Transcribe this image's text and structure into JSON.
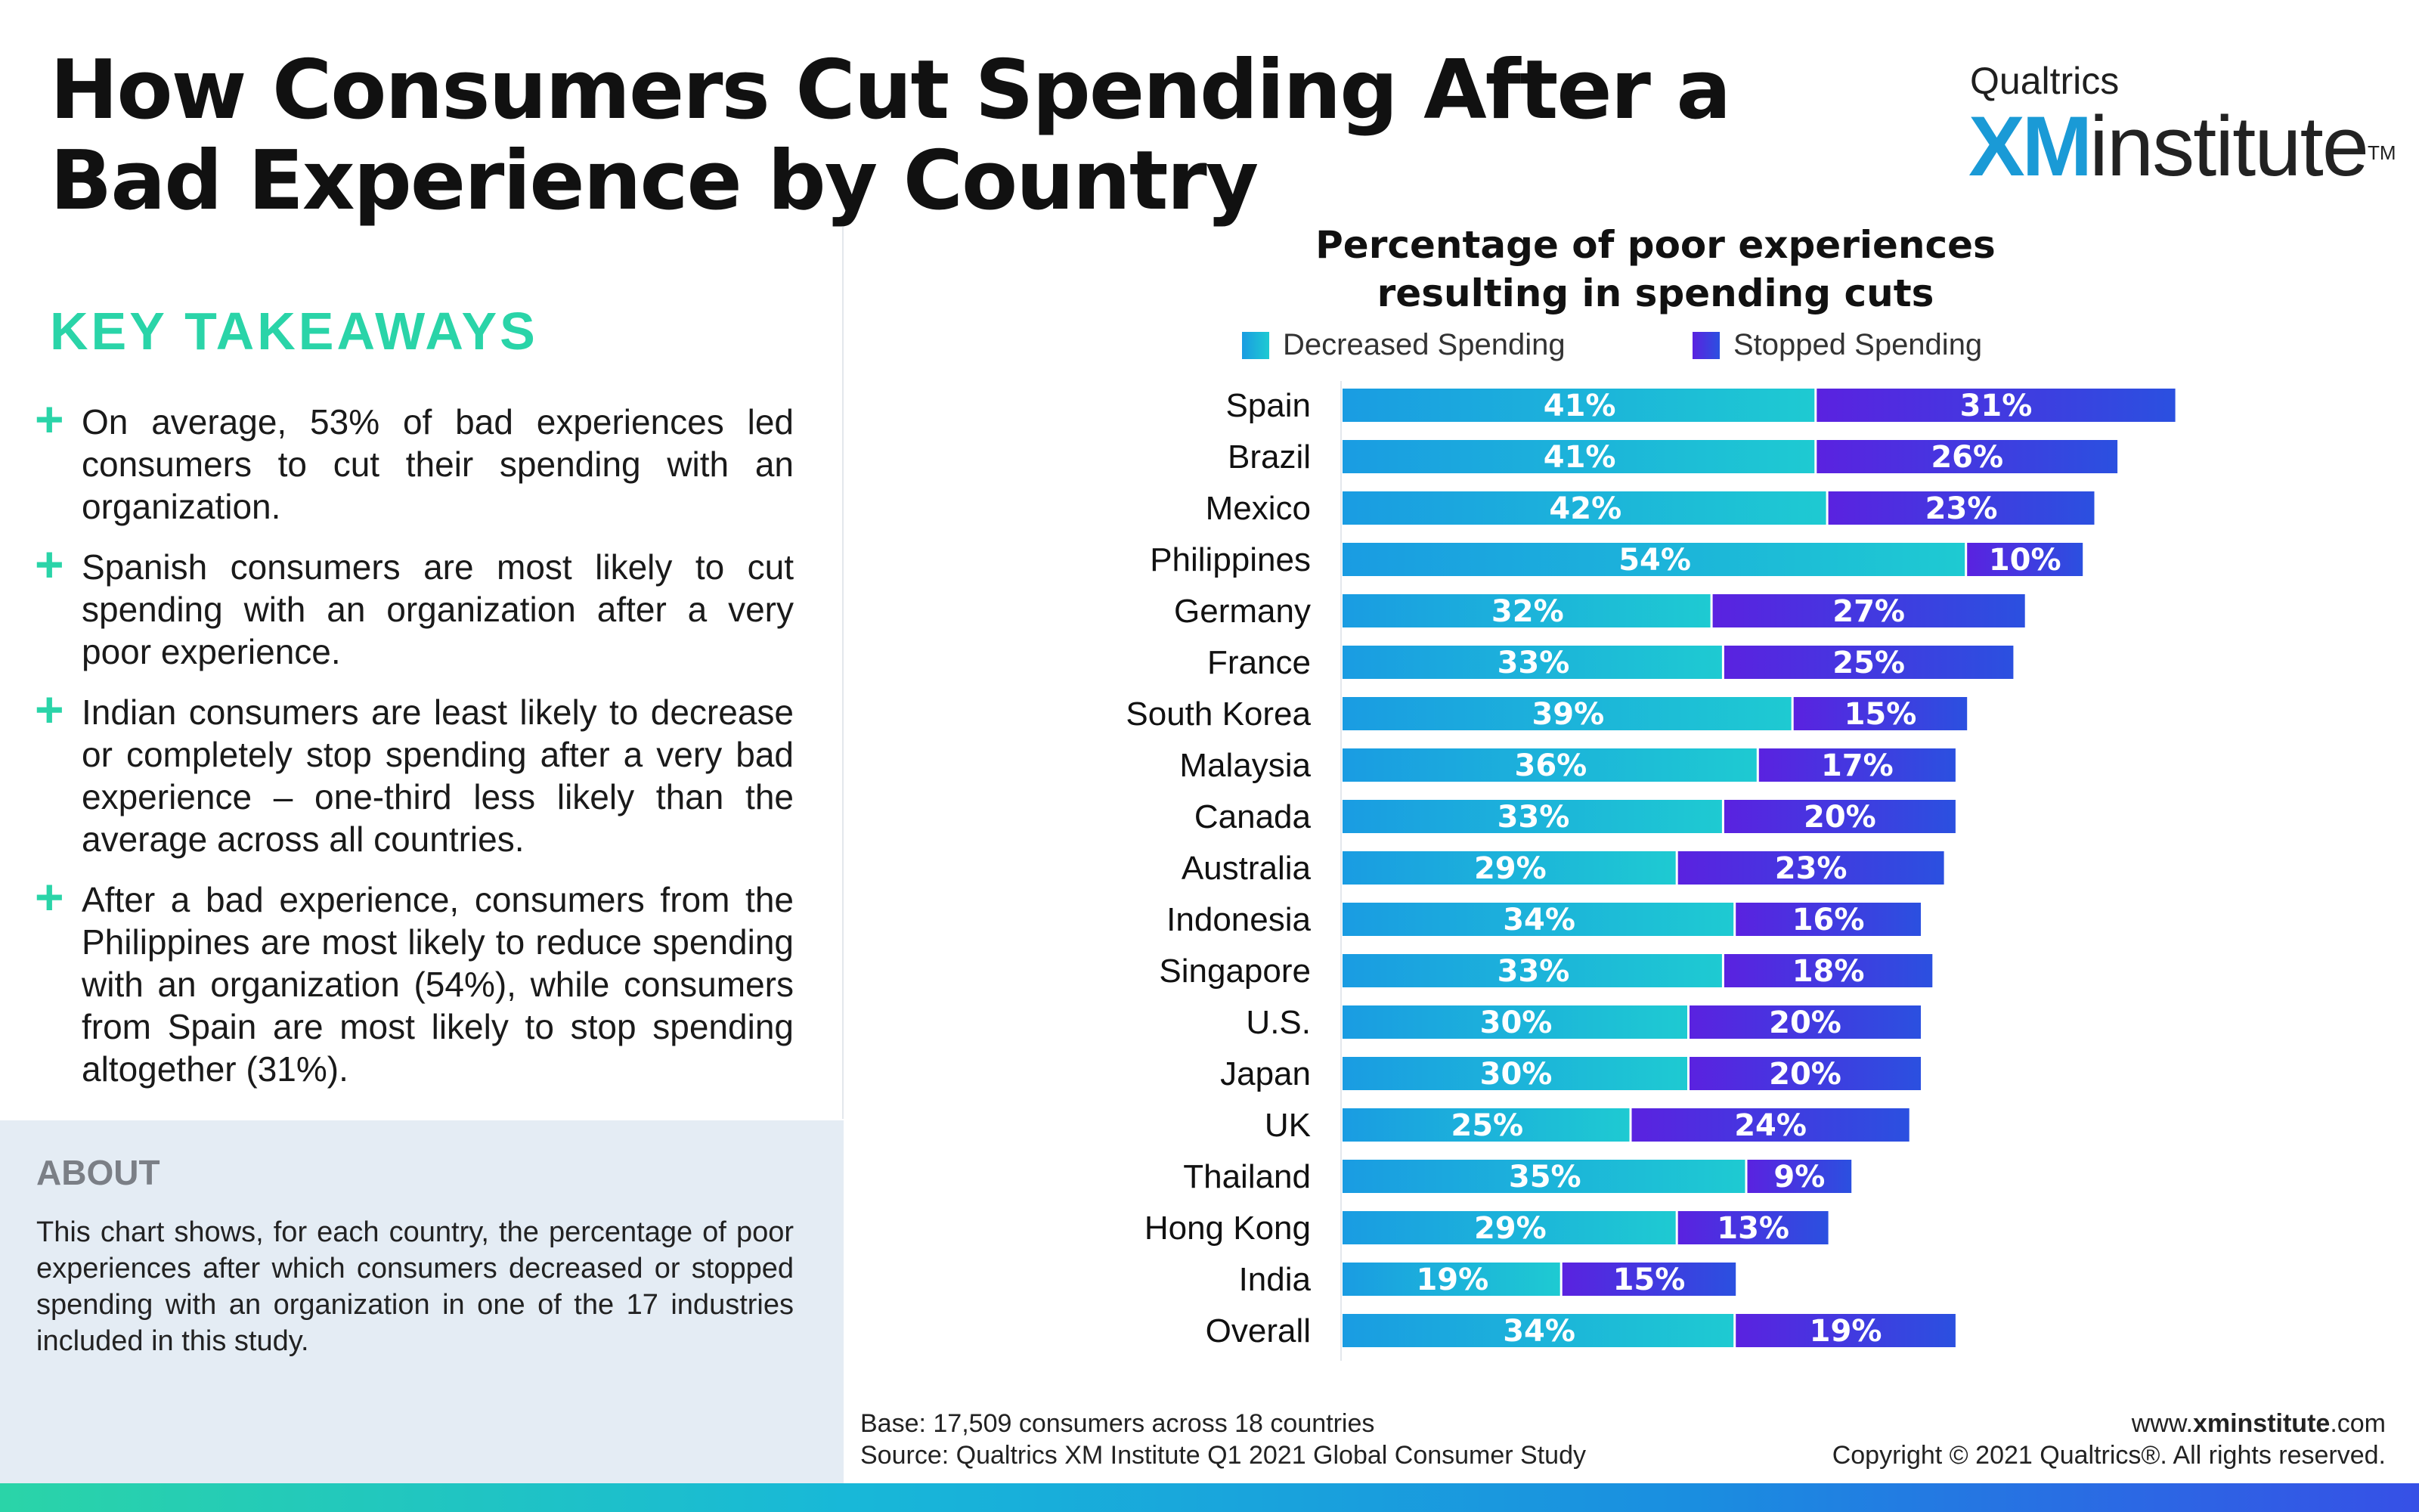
{
  "title": "How Consumers Cut Spending After a Bad Experience by Country",
  "brand": {
    "top": "Qualtrics",
    "xm": "XM",
    "institute": "institute",
    "tm": "TM"
  },
  "takeaways": {
    "heading": "KEY TAKEAWAYS",
    "items": [
      {
        "text": "On average, 53% of bad experiences led consumers to cut their spending with an organization."
      },
      {
        "text": "Spanish consumers are most likely to cut spending with an organization after a very poor experience."
      },
      {
        "text": "Indian consumers are least likely to decrease or completely stop spending after a very bad experience – one-third less likely than the average across all countries."
      },
      {
        "text": "After a bad experience, consumers from the Philippines are most likely to reduce spending with an organization (54%), while consumers from Spain are most likely to stop spending altogether (31%)."
      }
    ]
  },
  "about": {
    "heading": "ABOUT",
    "text": "This chart shows, for each country, the percentage of poor experiences after which consumers decreased or stopped spending with an organization in one of the 17 industries included in this study."
  },
  "colors": {
    "decreased_start": "#1a9ce2",
    "decreased_end": "#1ecad2",
    "stopped_start": "#5a22e0",
    "stopped_end": "#2b50e0",
    "accent": "#2ad4a8"
  },
  "chart_data": {
    "type": "bar",
    "orientation": "horizontal",
    "stacked": true,
    "title": "Percentage of poor experiences resulting in spending cuts",
    "legend_position": "top",
    "grid": false,
    "categories": [
      "Spain",
      "Brazil",
      "Mexico",
      "Philippines",
      "Germany",
      "France",
      "South Korea",
      "Malaysia",
      "Canada",
      "Australia",
      "Indonesia",
      "Singapore",
      "U.S.",
      "Japan",
      "UK",
      "Thailand",
      "Hong Kong",
      "India",
      "Overall"
    ],
    "series": [
      {
        "name": "Decreased Spending",
        "values": [
          41,
          41,
          42,
          54,
          32,
          33,
          39,
          36,
          33,
          29,
          34,
          33,
          30,
          30,
          25,
          35,
          29,
          19,
          34
        ]
      },
      {
        "name": "Stopped Spending",
        "values": [
          31,
          26,
          23,
          10,
          27,
          25,
          15,
          17,
          20,
          23,
          16,
          18,
          20,
          20,
          24,
          9,
          13,
          15,
          19
        ]
      }
    ],
    "value_suffix": "%"
  },
  "footnote": {
    "base": "Base: 17,509 consumers across 18 countries",
    "source": "Source: Qualtrics XM Institute Q1 2021 Global Consumer Study"
  },
  "footer": {
    "url_prefix": "www.",
    "url_bold": "xminstitute",
    "url_suffix": ".com",
    "copyright": "Copyright © 2021 Qualtrics®. All rights reserved."
  }
}
